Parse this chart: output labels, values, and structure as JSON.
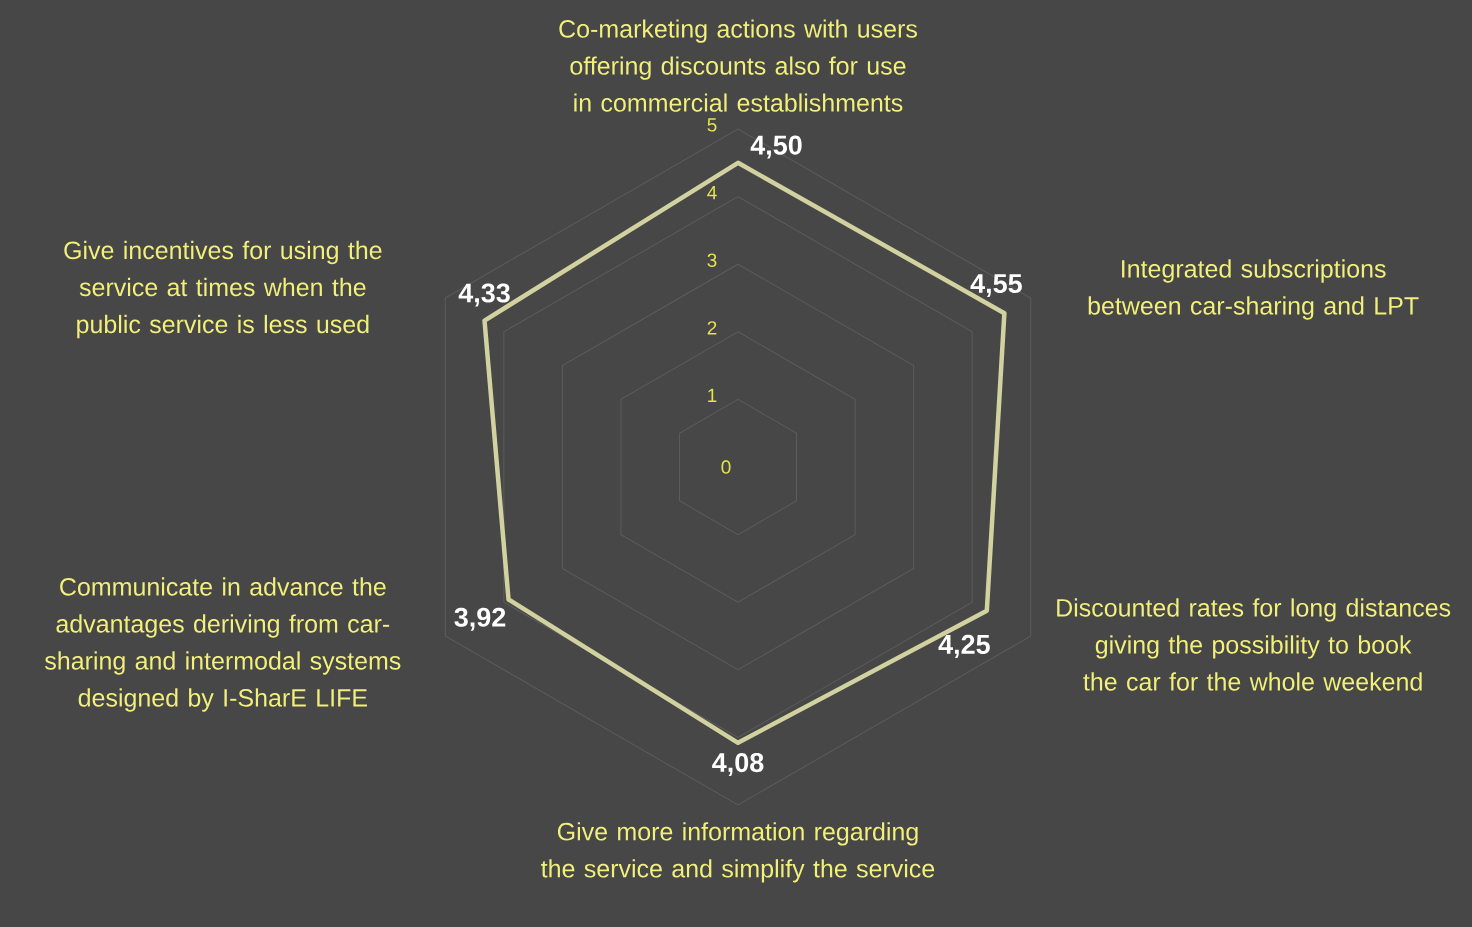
{
  "chart_data": {
    "type": "radar",
    "categories": [
      "Co-marketing actions with users offering discounts also for use in commercial establishments",
      "Integrated subscriptions between car-sharing and LPT",
      "Discounted rates for long distances giving the possibility to book the car for the whole weekend",
      "Give more information regarding the service and simplify the service",
      "Communicate in advance the advantages deriving from car-sharing and intermodal systems designed by I-SharE LIFE",
      "Give incentives for using the service at times when the public service is less used"
    ],
    "series": [
      {
        "color": "#d2d2a0",
        "values": [
          4.5,
          4.55,
          4.25,
          4.08,
          3.92,
          4.33
        ],
        "value_labels": [
          "4,50",
          "4,55",
          "4,25",
          "4,08",
          "3,92",
          "4,33"
        ]
      }
    ],
    "ylim": [
      0,
      5
    ],
    "yticks": [
      {
        "value": 0,
        "label": "0"
      },
      1,
      2,
      3,
      4,
      5
    ],
    "grid": true
  }
}
